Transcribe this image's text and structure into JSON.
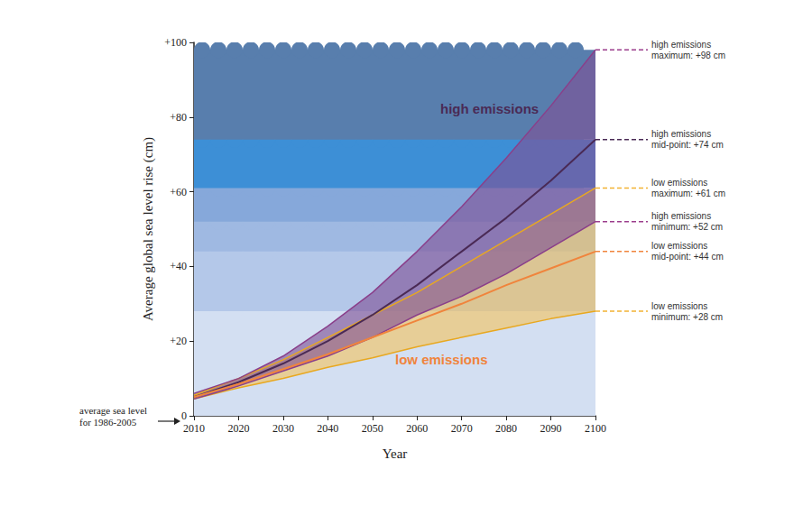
{
  "chart_data": {
    "type": "line",
    "x_label": "Year",
    "y_label": "Average global sea level rise (cm)",
    "x": [
      2010,
      2020,
      2030,
      2040,
      2050,
      2060,
      2070,
      2080,
      2090,
      2100
    ],
    "xlim": [
      2010,
      2100
    ],
    "xticks": [
      2010,
      2020,
      2030,
      2040,
      2050,
      2060,
      2070,
      2080,
      2090,
      2100
    ],
    "ylim": [
      0,
      100
    ],
    "yticks": [
      0,
      {
        "value": 20,
        "label": "+20"
      },
      {
        "value": 40,
        "label": "+40"
      },
      {
        "value": 60,
        "label": "+60"
      },
      {
        "value": 80,
        "label": "+80"
      },
      {
        "value": 100,
        "label": "+100"
      }
    ],
    "grid": false,
    "series": [
      {
        "name": "high emissions",
        "color": "#4a2a55",
        "values": [
          5,
          9,
          14,
          20,
          27,
          35,
          44,
          53,
          63,
          74
        ],
        "low": [
          4.5,
          8,
          12,
          16,
          21,
          27,
          32,
          38,
          45,
          52
        ],
        "high": [
          6,
          10,
          16,
          24,
          33,
          44,
          56,
          69,
          83,
          98
        ]
      },
      {
        "name": "low emissions",
        "color": "#f0843c",
        "values": [
          5,
          8.5,
          12.5,
          16.5,
          21,
          25.5,
          30,
          35,
          39.5,
          44
        ],
        "low": [
          4.5,
          7.5,
          10,
          13,
          15.5,
          18.5,
          21,
          23.5,
          26,
          28
        ],
        "high": [
          5.5,
          10,
          15,
          21,
          27,
          33,
          40,
          47,
          54,
          61
        ]
      }
    ],
    "annotations": [
      {
        "text": "high emissions\nmaximum: +98 cm",
        "y": 98,
        "color": "#9b3d8c"
      },
      {
        "text": "high emissions\nmid-point: +74 cm",
        "y": 74,
        "color": "#4a2a55"
      },
      {
        "text": "low emissions\nmaximum: +61 cm",
        "y": 61,
        "color": "#f2b233"
      },
      {
        "text": "high emissions\nminimum: +52 cm",
        "y": 52,
        "color": "#9b3d8c"
      },
      {
        "text": "low emissions\nmid-point: +44 cm",
        "y": 44,
        "color": "#f0843c"
      },
      {
        "text": "low emissions\nminimum: +28 cm",
        "y": 28,
        "color": "#f2b233"
      }
    ],
    "baseline_note": {
      "text": "average sea level\nfor 1986-2005",
      "y": 0
    }
  }
}
